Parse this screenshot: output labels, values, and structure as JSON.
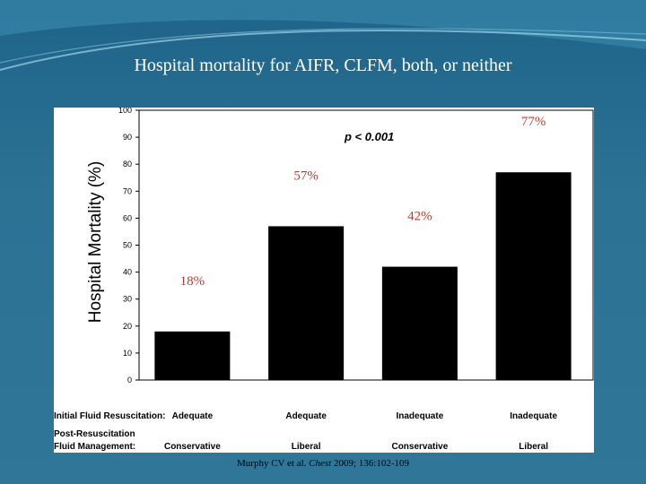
{
  "slide": {
    "title": "Hospital mortality for AIFR, CLFM, both, or neither",
    "citation_pre": "Murphy CV  et  al. ",
    "citation_journal": "Chest",
    "citation_post": " 2009; 136:102-109",
    "background_color": "#2b7295",
    "annotation_color": "#c0392b"
  },
  "chart_data": {
    "type": "bar",
    "categories": [
      "1",
      "2",
      "3",
      "4"
    ],
    "values": [
      18,
      57,
      42,
      77
    ],
    "value_labels": [
      "18%",
      "57%",
      "42%",
      "77%"
    ],
    "ylabel": "Hospital  Mortality (%)",
    "ylim": [
      0,
      100
    ],
    "yticks": [
      "0",
      "10",
      "20",
      "30",
      "40",
      "50",
      "60",
      "70",
      "80",
      "90",
      "100"
    ],
    "annotation": "p < 0.001",
    "row1_label": "Initial Fluid Resuscitation:",
    "row1_values": [
      "Adequate",
      "Adequate",
      "Inadequate",
      "Inadequate"
    ],
    "row2_label_line1": "Post-Resuscitation",
    "row2_label_line2": "Fluid Management:",
    "row2_values": [
      "Conservative",
      "Liberal",
      "Conservative",
      "Liberal"
    ],
    "bar_color": "#000000",
    "grid": false,
    "legend": "none"
  }
}
